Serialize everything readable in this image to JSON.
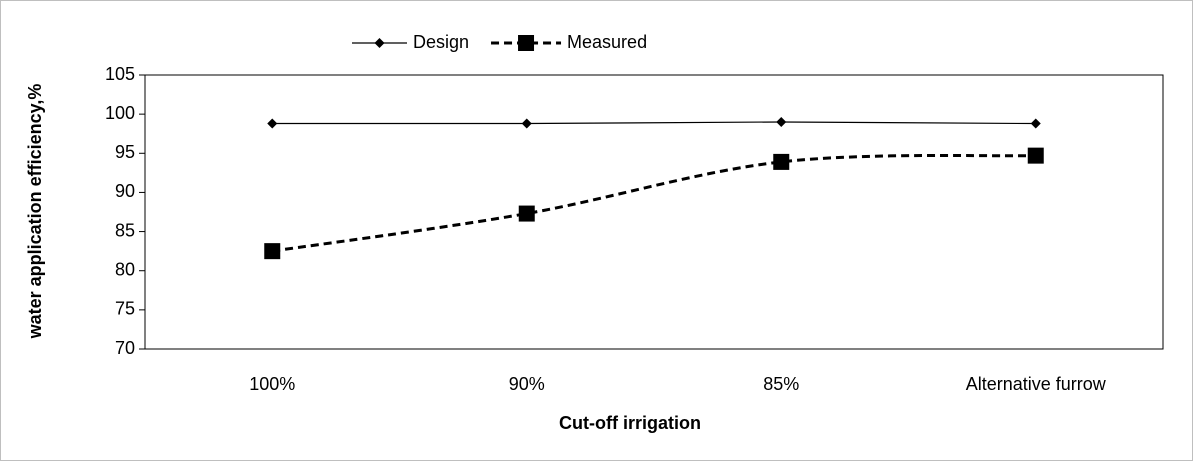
{
  "chart_data": {
    "type": "line",
    "xlabel": "Cut-off irrigation",
    "ylabel": "water application efficiency,%",
    "categories": [
      "100%",
      "90%",
      "85%",
      "Alternative furrow"
    ],
    "series": [
      {
        "name": "Design",
        "color": "#000000",
        "dash": false,
        "marker": "diamond",
        "smooth": false,
        "values": [
          98.8,
          98.8,
          99.0,
          98.8
        ]
      },
      {
        "name": "Measured",
        "color": "#000000",
        "dash": true,
        "marker": "square",
        "smooth": true,
        "values": [
          82.5,
          87.3,
          93.9,
          94.7
        ]
      }
    ],
    "ylim": [
      70,
      105
    ],
    "yticks": [
      70,
      75,
      80,
      85,
      90,
      95,
      100,
      105
    ],
    "grid": false,
    "legend": "top"
  }
}
